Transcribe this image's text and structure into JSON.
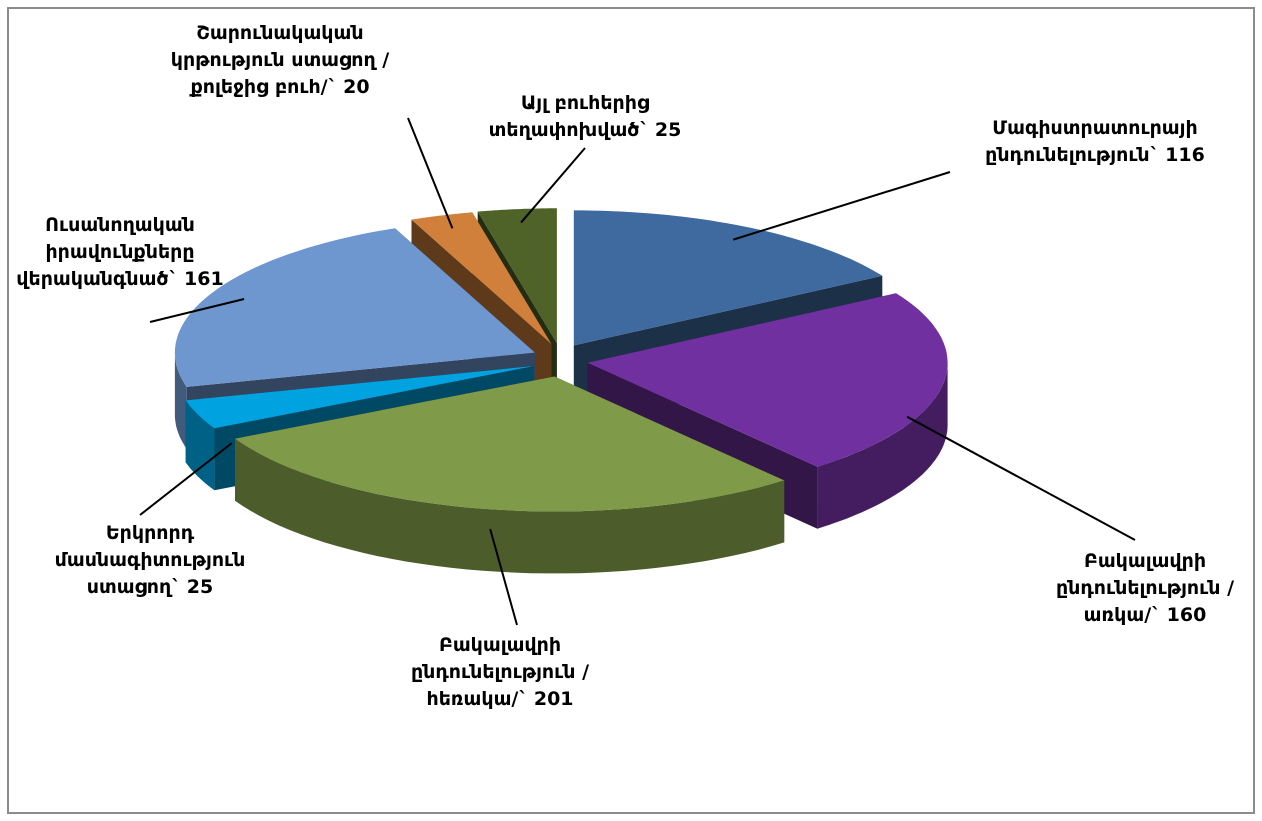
{
  "chart_data": {
    "type": "pie3d",
    "categories": [
      "Մագիստրատուրայի ընդունելություն`",
      "Բակալավրի ընդունելություն /առկա/`",
      "Բակալավրի ընդունելություն /հեռակա/`",
      "Երկրորդ մասնագիտություն ստացող`",
      "Ուսանողական իրավունքները վերականգնած`",
      "Շարունակական կրթություն ստացող /քոլեջից բուհ/`",
      "Այլ բուհերից տեղափոխված`"
    ],
    "values": [
      116,
      160,
      201,
      25,
      161,
      20,
      25
    ],
    "colors": [
      "#3f6aa0",
      "#7030a0",
      "#7f9a48",
      "#00a2e0",
      "#6e97d0",
      "#d0803a",
      "#4f6228"
    ]
  }
}
